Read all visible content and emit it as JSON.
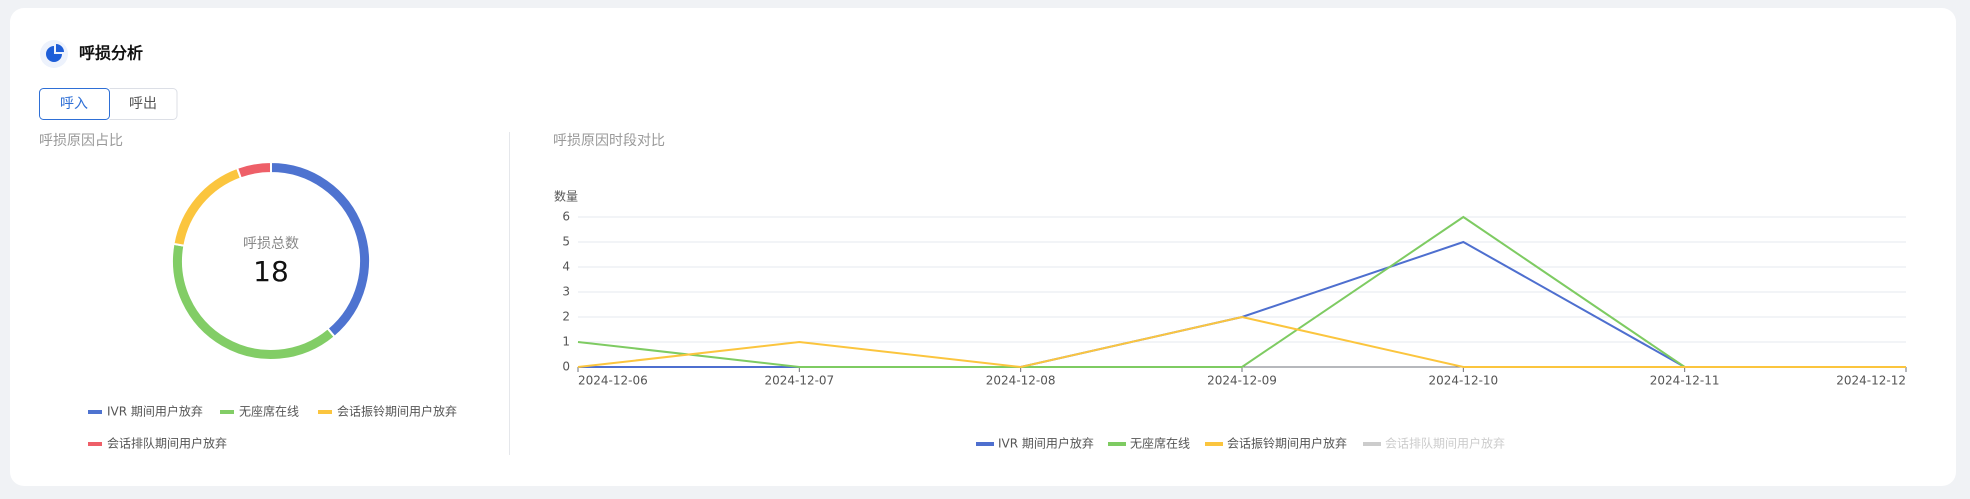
{
  "header": {
    "title": "呼损分析"
  },
  "tabs": [
    "呼入",
    "呼出"
  ],
  "chart_data": [
    {
      "type": "pie",
      "title": "呼损原因占比",
      "center_label": "呼损总数",
      "center_value": 18,
      "categories": [
        "IVR 期间用户放弃",
        "无座席在线",
        "会话振铃期间用户放弃",
        "会话排队期间用户放弃"
      ],
      "values": [
        7,
        7,
        3,
        1
      ],
      "colors": [
        "#4e73d0",
        "#82cd66",
        "#fbc53e",
        "#ee5f68"
      ]
    },
    {
      "type": "line",
      "title": "呼损原因时段对比",
      "y_label": "数量",
      "x": [
        "2024-12-06",
        "2024-12-07",
        "2024-12-08",
        "2024-12-09",
        "2024-12-10",
        "2024-12-11",
        "2024-12-12"
      ],
      "ylim": [
        0,
        6
      ],
      "yticks": [
        0,
        1,
        2,
        3,
        4,
        5,
        6
      ],
      "grid": true,
      "series": [
        {
          "name": "IVR 期间用户放弃",
          "color": "#4e6fcf",
          "values": [
            0,
            0,
            0,
            2,
            5,
            0,
            0
          ]
        },
        {
          "name": "无座席在线",
          "color": "#7ecb62",
          "values": [
            1,
            0,
            0,
            0,
            6,
            0,
            0
          ]
        },
        {
          "name": "会话振铃期间用户放弃",
          "color": "#fbc53e",
          "values": [
            0,
            1,
            0,
            2,
            0,
            0,
            0
          ]
        },
        {
          "name": "会话排队期间用户放弃",
          "color": "#cccccc",
          "visible": false
        }
      ]
    }
  ]
}
